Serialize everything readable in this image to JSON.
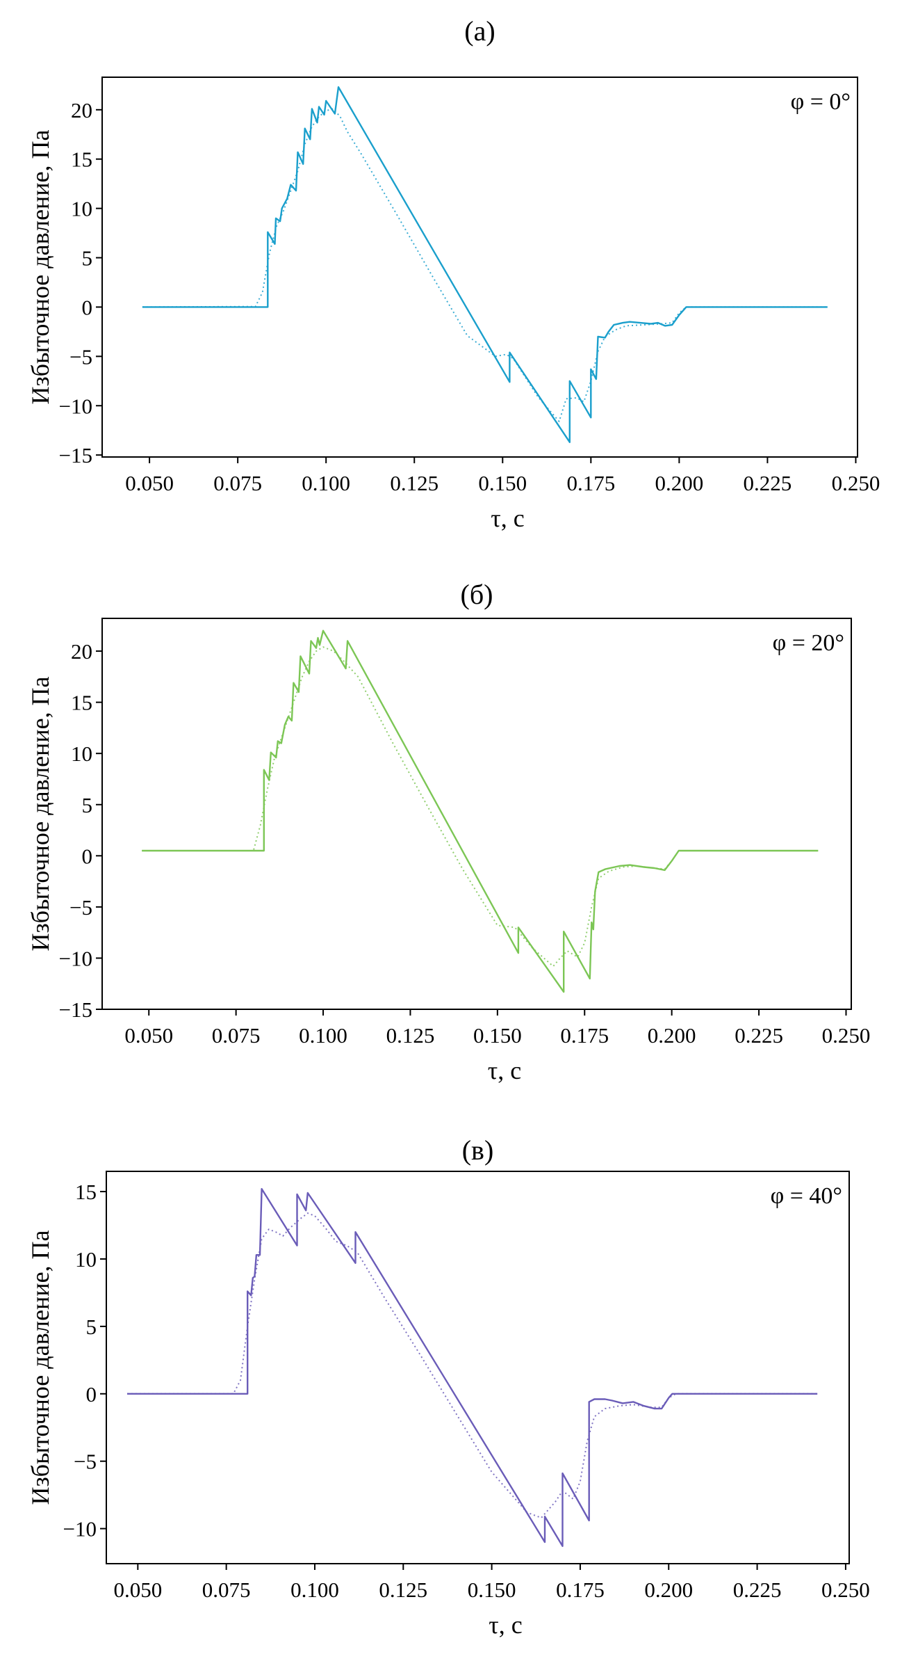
{
  "chart_data": [
    {
      "type": "line",
      "title": "(а)",
      "annotation": "φ = 0°",
      "xlabel": "τ, с",
      "ylabel": "Избыточное давление, Па",
      "color": "#1a9fcc",
      "xlim": [
        0.0366,
        0.2505
      ],
      "ylim": [
        -15.2,
        23.3
      ],
      "xticks": [
        "0.050",
        "0.075",
        "0.100",
        "0.125",
        "0.150",
        "0.175",
        "0.200",
        "0.225",
        "0.250"
      ],
      "yticks": [
        "−15",
        "−10",
        "−5",
        "0",
        "5",
        "10",
        "15",
        "20"
      ],
      "grid": false,
      "series": [
        {
          "style": "solid",
          "points": [
            [
              0.048,
              0
            ],
            [
              0.0835,
              0
            ],
            [
              0.0835,
              7.6
            ],
            [
              0.0855,
              6.4
            ],
            [
              0.0858,
              9.0
            ],
            [
              0.087,
              8.7
            ],
            [
              0.0875,
              10
            ],
            [
              0.089,
              11
            ],
            [
              0.09,
              12.4
            ],
            [
              0.0915,
              11.8
            ],
            [
              0.092,
              15.7
            ],
            [
              0.0935,
              14.5
            ],
            [
              0.094,
              18.1
            ],
            [
              0.0955,
              17
            ],
            [
              0.096,
              20.1
            ],
            [
              0.0975,
              18.7
            ],
            [
              0.098,
              20.3
            ],
            [
              0.0995,
              19.5
            ],
            [
              0.1,
              20.9
            ],
            [
              0.1025,
              19.6
            ],
            [
              0.1035,
              22.3
            ],
            [
              0.152,
              -7.6
            ],
            [
              0.152,
              -4.6
            ],
            [
              0.169,
              -13.7
            ],
            [
              0.169,
              -7.5
            ],
            [
              0.175,
              -11.2
            ],
            [
              0.175,
              -6.3
            ],
            [
              0.1765,
              -7.3
            ],
            [
              0.177,
              -3.0
            ],
            [
              0.179,
              -3.1
            ],
            [
              0.18,
              -2.5
            ],
            [
              0.1815,
              -1.8
            ],
            [
              0.184,
              -1.6
            ],
            [
              0.186,
              -1.5
            ],
            [
              0.189,
              -1.6
            ],
            [
              0.192,
              -1.7
            ],
            [
              0.194,
              -1.6
            ],
            [
              0.196,
              -1.9
            ],
            [
              0.198,
              -1.8
            ],
            [
              0.2,
              -0.8
            ],
            [
              0.202,
              0
            ],
            [
              0.242,
              0
            ]
          ]
        },
        {
          "style": "dotted",
          "points": [
            [
              0.048,
              0
            ],
            [
              0.08,
              0.05
            ],
            [
              0.082,
              1.5
            ],
            [
              0.084,
              5.5
            ],
            [
              0.086,
              8.2
            ],
            [
              0.088,
              9.8
            ],
            [
              0.09,
              11.8
            ],
            [
              0.092,
              13.8
            ],
            [
              0.094,
              16.5
            ],
            [
              0.096,
              18.3
            ],
            [
              0.098,
              19.3
            ],
            [
              0.1,
              19.9
            ],
            [
              0.102,
              20.1
            ],
            [
              0.104,
              19.3
            ],
            [
              0.106,
              17.8
            ],
            [
              0.11,
              15.5
            ],
            [
              0.12,
              9.4
            ],
            [
              0.13,
              3.2
            ],
            [
              0.14,
              -2.9
            ],
            [
              0.148,
              -5.0
            ],
            [
              0.151,
              -4.8
            ],
            [
              0.153,
              -5.2
            ],
            [
              0.16,
              -9.1
            ],
            [
              0.166,
              -11.6
            ],
            [
              0.168,
              -9.3
            ],
            [
              0.171,
              -9.2
            ],
            [
              0.173,
              -9.6
            ],
            [
              0.175,
              -7.5
            ],
            [
              0.177,
              -4.5
            ],
            [
              0.179,
              -3.0
            ],
            [
              0.182,
              -2.3
            ],
            [
              0.185,
              -1.9
            ],
            [
              0.19,
              -1.8
            ],
            [
              0.195,
              -1.7
            ],
            [
              0.198,
              -1.6
            ],
            [
              0.2,
              -0.6
            ],
            [
              0.202,
              0
            ],
            [
              0.242,
              0
            ]
          ]
        }
      ]
    },
    {
      "type": "line",
      "title": "(б)",
      "annotation": "φ = 20°",
      "xlabel": "τ, с",
      "ylabel": "Избыточное давление, Па",
      "color": "#7cc655",
      "xlim": [
        0.0366,
        0.2515
      ],
      "ylim": [
        -15.0,
        23.2
      ],
      "xticks": [
        "0.050",
        "0.075",
        "0.100",
        "0.125",
        "0.150",
        "0.175",
        "0.200",
        "0.225",
        "0.250"
      ],
      "yticks": [
        "−15",
        "−10",
        "−5",
        "0",
        "5",
        "10",
        "15",
        "20"
      ],
      "grid": false,
      "series": [
        {
          "style": "solid",
          "points": [
            [
              0.048,
              0.5
            ],
            [
              0.083,
              0.5
            ],
            [
              0.083,
              8.4
            ],
            [
              0.0845,
              7.4
            ],
            [
              0.085,
              10.1
            ],
            [
              0.0865,
              9.6
            ],
            [
              0.087,
              11.2
            ],
            [
              0.088,
              11.0
            ],
            [
              0.089,
              12.8
            ],
            [
              0.09,
              13.6
            ],
            [
              0.091,
              13.2
            ],
            [
              0.0915,
              16.9
            ],
            [
              0.093,
              16.0
            ],
            [
              0.0935,
              19.5
            ],
            [
              0.096,
              17.8
            ],
            [
              0.0965,
              21.0
            ],
            [
              0.098,
              20.3
            ],
            [
              0.0985,
              21.3
            ],
            [
              0.099,
              20.6
            ],
            [
              0.1,
              22.0
            ],
            [
              0.1065,
              18.3
            ],
            [
              0.107,
              21.0
            ],
            [
              0.156,
              -9.5
            ],
            [
              0.156,
              -7.0
            ],
            [
              0.169,
              -13.3
            ],
            [
              0.169,
              -7.4
            ],
            [
              0.1765,
              -12.0
            ],
            [
              0.177,
              -6.5
            ],
            [
              0.1775,
              -7.2
            ],
            [
              0.178,
              -3.5
            ],
            [
              0.179,
              -1.6
            ],
            [
              0.181,
              -1.3
            ],
            [
              0.185,
              -1.0
            ],
            [
              0.188,
              -0.9
            ],
            [
              0.192,
              -1.1
            ],
            [
              0.195,
              -1.2
            ],
            [
              0.198,
              -1.4
            ],
            [
              0.2,
              -0.5
            ],
            [
              0.202,
              0.5
            ],
            [
              0.242,
              0.5
            ]
          ]
        },
        {
          "style": "dotted",
          "points": [
            [
              0.048,
              0.5
            ],
            [
              0.08,
              0.5
            ],
            [
              0.082,
              3
            ],
            [
              0.084,
              6.5
            ],
            [
              0.086,
              9.5
            ],
            [
              0.088,
              11.5
            ],
            [
              0.09,
              13.5
            ],
            [
              0.092,
              15.5
            ],
            [
              0.094,
              17.5
            ],
            [
              0.096,
              19.0
            ],
            [
              0.098,
              20.0
            ],
            [
              0.1,
              20.4
            ],
            [
              0.103,
              20.0
            ],
            [
              0.106,
              19.0
            ],
            [
              0.11,
              17.5
            ],
            [
              0.12,
              11.0
            ],
            [
              0.13,
              4.8
            ],
            [
              0.14,
              -1.3
            ],
            [
              0.15,
              -6.8
            ],
            [
              0.155,
              -7.0
            ],
            [
              0.16,
              -9.0
            ],
            [
              0.166,
              -10.8
            ],
            [
              0.168,
              -10.0
            ],
            [
              0.17,
              -9.3
            ],
            [
              0.173,
              -9.9
            ],
            [
              0.175,
              -8.5
            ],
            [
              0.177,
              -5.0
            ],
            [
              0.179,
              -2.2
            ],
            [
              0.182,
              -1.5
            ],
            [
              0.186,
              -1.1
            ],
            [
              0.19,
              -1.0
            ],
            [
              0.195,
              -1.2
            ],
            [
              0.198,
              -1.3
            ],
            [
              0.2,
              -0.5
            ],
            [
              0.202,
              0.5
            ],
            [
              0.242,
              0.5
            ]
          ]
        }
      ]
    },
    {
      "type": "line",
      "title": "(в)",
      "annotation": "φ = 40°",
      "xlabel": "τ, с",
      "ylabel": "Избыточное давление, Па",
      "color": "#6a5cb8",
      "xlim": [
        0.0411,
        0.251
      ],
      "ylim": [
        -12.6,
        16.5
      ],
      "xticks": [
        "0.050",
        "0.075",
        "0.100",
        "0.125",
        "0.150",
        "0.175",
        "0.200",
        "0.225",
        "0.250"
      ],
      "yticks": [
        "−10",
        "−5",
        "0",
        "5",
        "10",
        "15"
      ],
      "grid": false,
      "series": [
        {
          "style": "solid",
          "points": [
            [
              0.047,
              0
            ],
            [
              0.081,
              0
            ],
            [
              0.081,
              7.6
            ],
            [
              0.082,
              7.3
            ],
            [
              0.0825,
              8.6
            ],
            [
              0.083,
              8.7
            ],
            [
              0.0835,
              10.3
            ],
            [
              0.0845,
              10.3
            ],
            [
              0.085,
              15.2
            ],
            [
              0.095,
              11.0
            ],
            [
              0.095,
              14.8
            ],
            [
              0.0975,
              13.6
            ],
            [
              0.098,
              14.9
            ],
            [
              0.1115,
              9.7
            ],
            [
              0.1115,
              12.0
            ],
            [
              0.165,
              -11.0
            ],
            [
              0.165,
              -9.1
            ],
            [
              0.17,
              -11.3
            ],
            [
              0.17,
              -5.9
            ],
            [
              0.1775,
              -9.4
            ],
            [
              0.1775,
              -0.6
            ],
            [
              0.179,
              -0.4
            ],
            [
              0.182,
              -0.4
            ],
            [
              0.184,
              -0.5
            ],
            [
              0.187,
              -0.7
            ],
            [
              0.19,
              -0.6
            ],
            [
              0.193,
              -0.9
            ],
            [
              0.196,
              -1.1
            ],
            [
              0.198,
              -1.1
            ],
            [
              0.2,
              -0.3
            ],
            [
              0.201,
              0
            ],
            [
              0.242,
              0
            ]
          ]
        },
        {
          "style": "dotted",
          "points": [
            [
              0.047,
              0
            ],
            [
              0.077,
              0
            ],
            [
              0.079,
              1
            ],
            [
              0.081,
              5
            ],
            [
              0.083,
              8.5
            ],
            [
              0.085,
              11.5
            ],
            [
              0.087,
              12.2
            ],
            [
              0.089,
              12.0
            ],
            [
              0.091,
              11.7
            ],
            [
              0.093,
              12.3
            ],
            [
              0.096,
              13.0
            ],
            [
              0.098,
              13.4
            ],
            [
              0.1,
              13.2
            ],
            [
              0.103,
              12.3
            ],
            [
              0.106,
              11.3
            ],
            [
              0.109,
              11.0
            ],
            [
              0.112,
              10.5
            ],
            [
              0.12,
              7.0
            ],
            [
              0.13,
              2.8
            ],
            [
              0.14,
              -1.5
            ],
            [
              0.15,
              -5.8
            ],
            [
              0.16,
              -8.8
            ],
            [
              0.164,
              -9.2
            ],
            [
              0.168,
              -8.0
            ],
            [
              0.17,
              -7.2
            ],
            [
              0.173,
              -7.8
            ],
            [
              0.175,
              -6.5
            ],
            [
              0.177,
              -3.5
            ],
            [
              0.179,
              -1.7
            ],
            [
              0.182,
              -1.1
            ],
            [
              0.186,
              -0.9
            ],
            [
              0.19,
              -0.8
            ],
            [
              0.195,
              -1.0
            ],
            [
              0.198,
              -1.0
            ],
            [
              0.2,
              -0.3
            ],
            [
              0.202,
              0
            ],
            [
              0.242,
              0
            ]
          ]
        }
      ]
    }
  ]
}
